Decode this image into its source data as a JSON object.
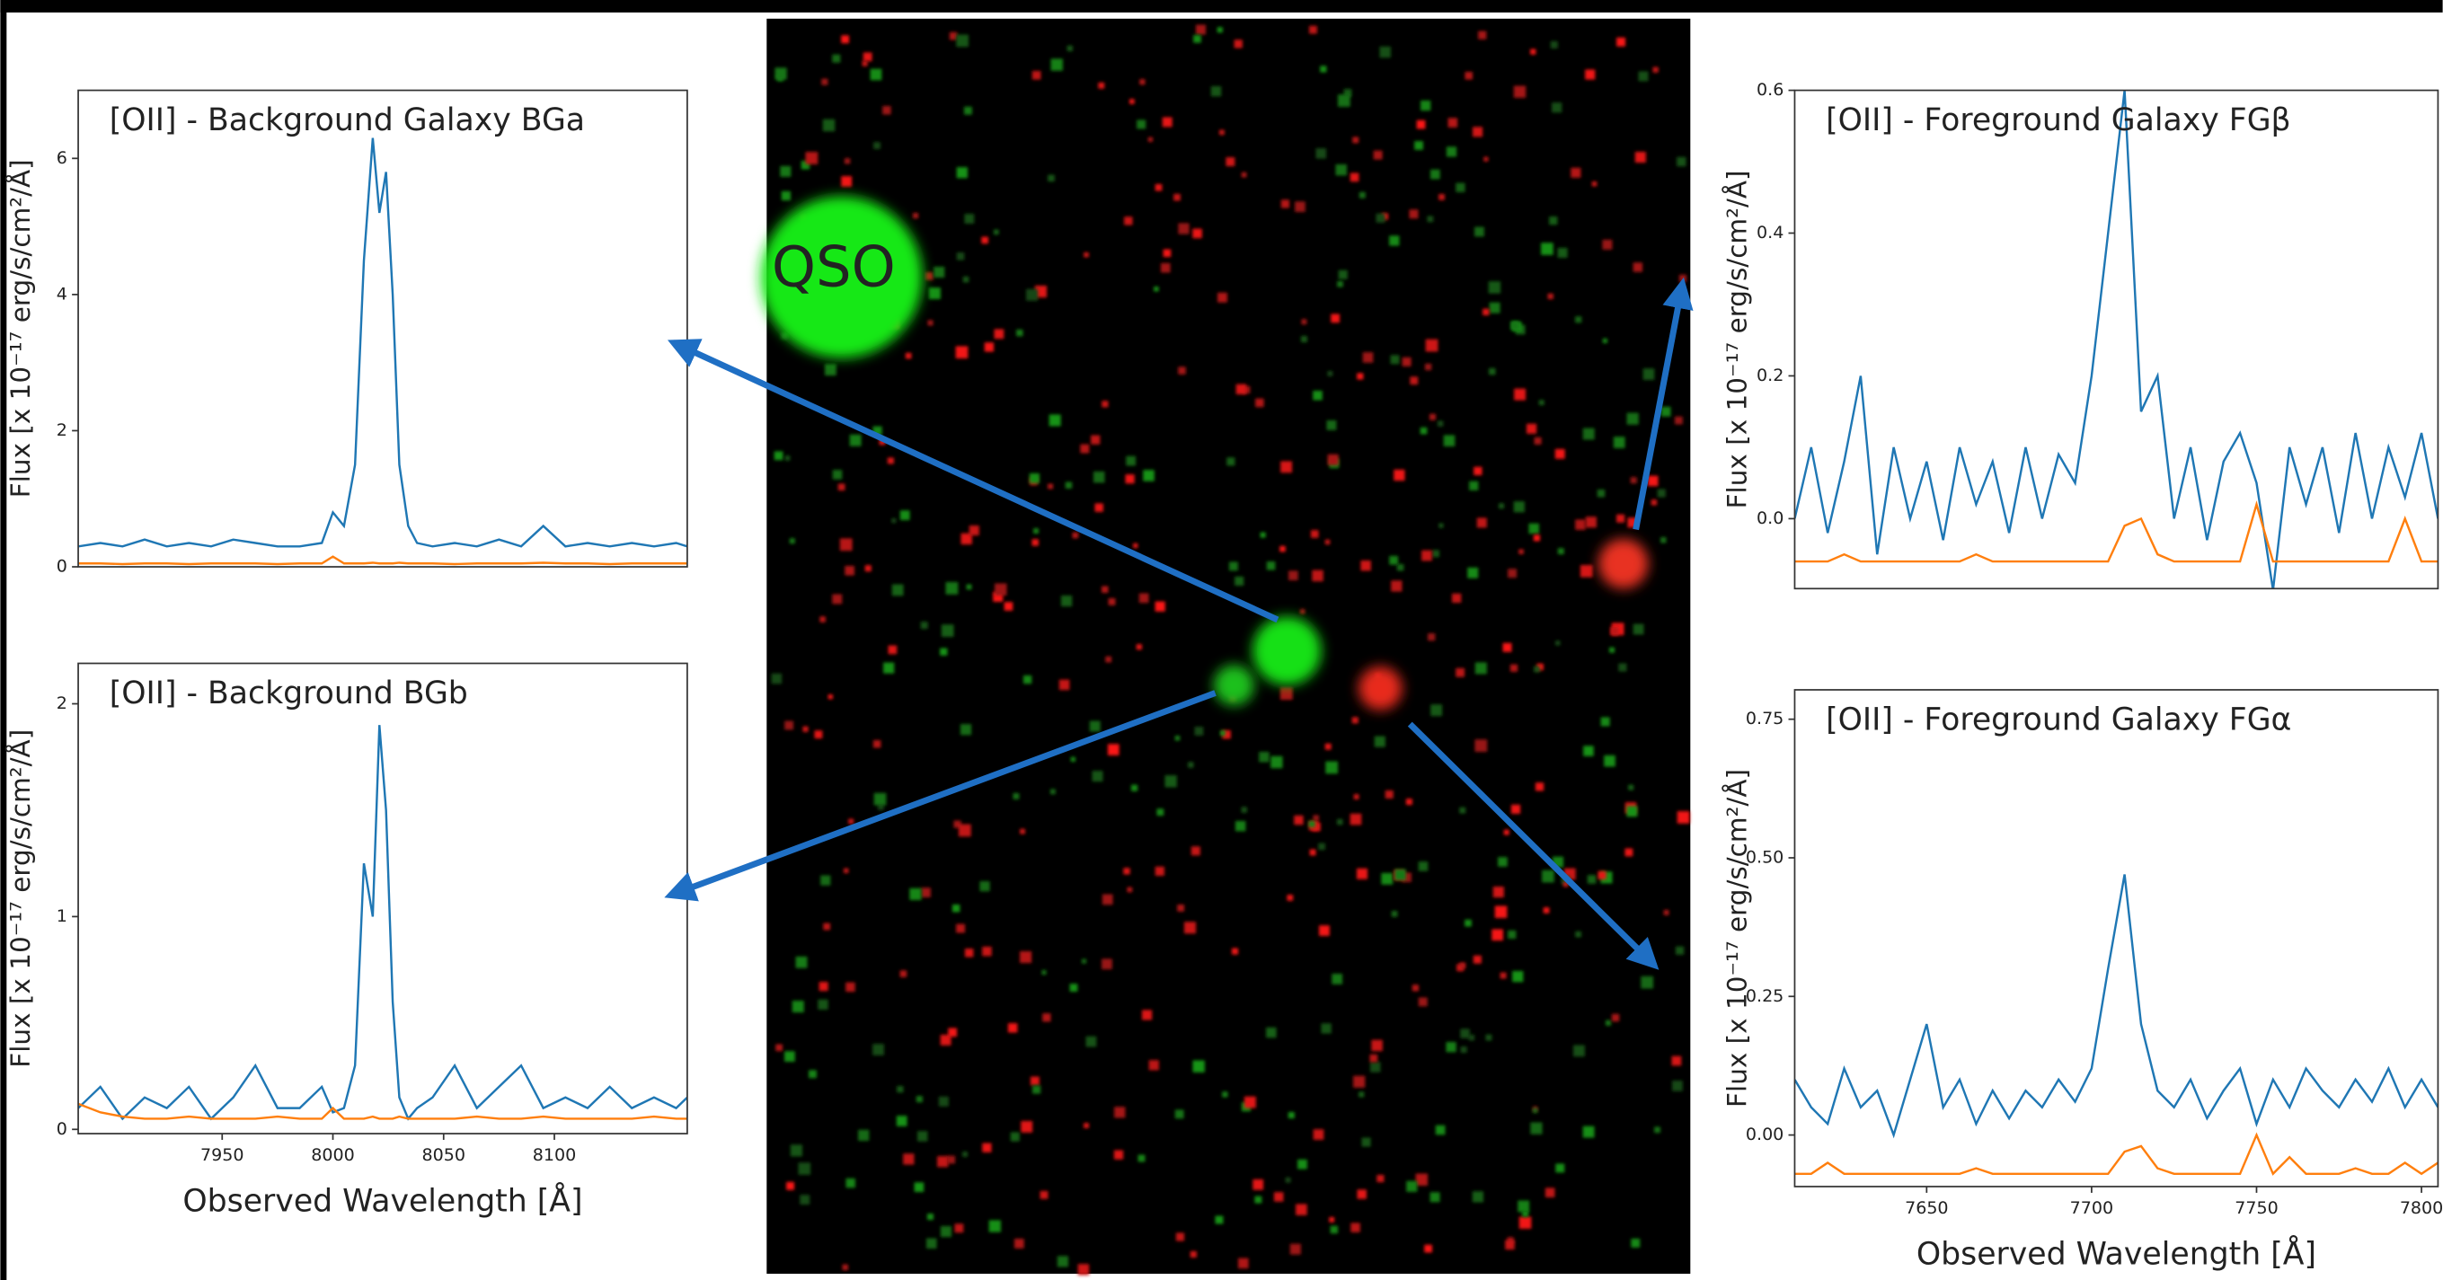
{
  "chart_data": [
    {
      "type": "line",
      "title": "[OII] - Background Galaxy BGa",
      "ylabel": "Flux [x 10⁻¹⁷ erg/s/cm²/Å]",
      "xlim": [
        7885,
        8160
      ],
      "ylim": [
        0,
        7.0
      ],
      "yticks": [
        0,
        2,
        4,
        6
      ],
      "x": [
        7885,
        7895,
        7905,
        7915,
        7925,
        7935,
        7945,
        7955,
        7965,
        7975,
        7985,
        7995,
        8000,
        8005,
        8010,
        8014,
        8018,
        8021,
        8024,
        8027,
        8030,
        8034,
        8038,
        8045,
        8055,
        8065,
        8075,
        8085,
        8095,
        8105,
        8115,
        8125,
        8135,
        8145,
        8155,
        8160
      ],
      "series": [
        {
          "color": "#1f77b4",
          "values": [
            0.3,
            0.35,
            0.3,
            0.4,
            0.3,
            0.35,
            0.3,
            0.4,
            0.35,
            0.3,
            0.3,
            0.35,
            0.8,
            0.6,
            1.5,
            4.5,
            6.3,
            5.2,
            5.8,
            4.0,
            1.5,
            0.6,
            0.35,
            0.3,
            0.35,
            0.3,
            0.4,
            0.3,
            0.6,
            0.3,
            0.35,
            0.3,
            0.35,
            0.3,
            0.35,
            0.3
          ]
        },
        {
          "color": "#ff7f0e",
          "values": [
            0.05,
            0.05,
            0.04,
            0.05,
            0.05,
            0.04,
            0.05,
            0.05,
            0.05,
            0.04,
            0.05,
            0.05,
            0.15,
            0.05,
            0.05,
            0.05,
            0.06,
            0.05,
            0.05,
            0.05,
            0.06,
            0.05,
            0.05,
            0.05,
            0.04,
            0.05,
            0.05,
            0.05,
            0.06,
            0.05,
            0.05,
            0.04,
            0.05,
            0.05,
            0.05,
            0.05
          ]
        }
      ]
    },
    {
      "type": "line",
      "title": "[OII] - Background BGb",
      "xlabel": "Observed Wavelength [Å]",
      "ylabel": "Flux [x 10⁻¹⁷ erg/s/cm²/Å]",
      "xlim": [
        7885,
        8160
      ],
      "xticks": [
        7950,
        8000,
        8050,
        8100
      ],
      "ylim": [
        -0.02,
        2.19
      ],
      "yticks": [
        0,
        1,
        2
      ],
      "x": [
        7885,
        7895,
        7905,
        7915,
        7925,
        7935,
        7945,
        7955,
        7965,
        7975,
        7985,
        7995,
        8000,
        8005,
        8010,
        8014,
        8018,
        8021,
        8024,
        8027,
        8030,
        8034,
        8038,
        8045,
        8055,
        8065,
        8075,
        8085,
        8095,
        8105,
        8115,
        8125,
        8135,
        8145,
        8155,
        8160
      ],
      "series": [
        {
          "color": "#1f77b4",
          "values": [
            0.1,
            0.2,
            0.05,
            0.15,
            0.1,
            0.2,
            0.05,
            0.15,
            0.3,
            0.1,
            0.1,
            0.2,
            0.08,
            0.1,
            0.3,
            1.25,
            1.0,
            1.9,
            1.5,
            0.6,
            0.15,
            0.05,
            0.1,
            0.15,
            0.3,
            0.1,
            0.2,
            0.3,
            0.1,
            0.15,
            0.1,
            0.2,
            0.1,
            0.15,
            0.1,
            0.15
          ]
        },
        {
          "color": "#ff7f0e",
          "values": [
            0.12,
            0.08,
            0.06,
            0.05,
            0.05,
            0.06,
            0.05,
            0.05,
            0.05,
            0.06,
            0.05,
            0.05,
            0.1,
            0.05,
            0.05,
            0.05,
            0.06,
            0.05,
            0.05,
            0.05,
            0.06,
            0.05,
            0.05,
            0.05,
            0.05,
            0.06,
            0.05,
            0.05,
            0.06,
            0.05,
            0.05,
            0.05,
            0.05,
            0.06,
            0.05,
            0.05
          ]
        }
      ]
    },
    {
      "type": "line",
      "title": "[OII] - Foreground Galaxy FGβ",
      "ylabel": "Flux [x 10⁻¹⁷ erg/s/cm²/Å]",
      "xlim": [
        7610,
        7805
      ],
      "ylim": [
        -0.098,
        0.6
      ],
      "yticks": [
        {
          "value": 0,
          "label": "0.0"
        },
        {
          "value": 0.2,
          "label": "0.2"
        },
        0.4,
        0.6
      ],
      "x": [
        7610,
        7615,
        7620,
        7625,
        7630,
        7635,
        7640,
        7645,
        7650,
        7655,
        7660,
        7665,
        7670,
        7675,
        7680,
        7685,
        7690,
        7695,
        7700,
        7705,
        7710,
        7715,
        7720,
        7725,
        7730,
        7735,
        7740,
        7745,
        7750,
        7755,
        7760,
        7765,
        7770,
        7775,
        7780,
        7785,
        7790,
        7795,
        7800,
        7805
      ],
      "series": [
        {
          "color": "#1f77b4",
          "values": [
            0.0,
            0.1,
            -0.02,
            0.08,
            0.2,
            -0.05,
            0.1,
            0.0,
            0.08,
            -0.03,
            0.1,
            0.02,
            0.08,
            -0.02,
            0.1,
            0.0,
            0.09,
            0.05,
            0.2,
            0.4,
            0.6,
            0.15,
            0.2,
            0.0,
            0.1,
            -0.03,
            0.08,
            0.12,
            0.05,
            -0.1,
            0.1,
            0.02,
            0.1,
            -0.02,
            0.12,
            0.0,
            0.1,
            0.03,
            0.12,
            0.0
          ]
        },
        {
          "color": "#ff7f0e",
          "values": [
            -0.06,
            -0.06,
            -0.06,
            -0.05,
            -0.06,
            -0.06,
            -0.06,
            -0.06,
            -0.06,
            -0.06,
            -0.06,
            -0.05,
            -0.06,
            -0.06,
            -0.06,
            -0.06,
            -0.06,
            -0.06,
            -0.06,
            -0.06,
            -0.01,
            0.0,
            -0.05,
            -0.06,
            -0.06,
            -0.06,
            -0.06,
            -0.06,
            0.02,
            -0.06,
            -0.06,
            -0.06,
            -0.06,
            -0.06,
            -0.06,
            -0.06,
            -0.06,
            0.0,
            -0.06,
            -0.06
          ]
        }
      ]
    },
    {
      "type": "line",
      "title": "[OII] - Foreground Galaxy FGα",
      "xlabel": "Observed Wavelength [Å]",
      "ylabel": "Flux [x 10⁻¹⁷ erg/s/cm²/Å]",
      "xlim": [
        7610,
        7805
      ],
      "xticks": [
        7650,
        7700,
        7750,
        7800
      ],
      "ylim": [
        -0.093,
        0.803
      ],
      "yticks": [
        {
          "value": 0,
          "label": "0.00"
        },
        {
          "value": 0.25,
          "label": "0.25"
        },
        {
          "value": 0.5,
          "label": "0.50"
        },
        0.75
      ],
      "x": [
        7610,
        7615,
        7620,
        7625,
        7630,
        7635,
        7640,
        7645,
        7650,
        7655,
        7660,
        7665,
        7670,
        7675,
        7680,
        7685,
        7690,
        7695,
        7700,
        7705,
        7710,
        7715,
        7720,
        7725,
        7730,
        7735,
        7740,
        7745,
        7750,
        7755,
        7760,
        7765,
        7770,
        7775,
        7780,
        7785,
        7790,
        7795,
        7800,
        7805
      ],
      "series": [
        {
          "color": "#1f77b4",
          "values": [
            0.1,
            0.05,
            0.02,
            0.12,
            0.05,
            0.08,
            0.0,
            0.1,
            0.2,
            0.05,
            0.1,
            0.02,
            0.08,
            0.03,
            0.08,
            0.05,
            0.1,
            0.06,
            0.12,
            0.3,
            0.47,
            0.2,
            0.08,
            0.05,
            0.1,
            0.03,
            0.08,
            0.12,
            0.02,
            0.1,
            0.05,
            0.12,
            0.08,
            0.05,
            0.1,
            0.06,
            0.12,
            0.05,
            0.1,
            0.05
          ]
        },
        {
          "color": "#ff7f0e",
          "values": [
            -0.07,
            -0.07,
            -0.05,
            -0.07,
            -0.07,
            -0.07,
            -0.07,
            -0.07,
            -0.07,
            -0.07,
            -0.07,
            -0.06,
            -0.07,
            -0.07,
            -0.07,
            -0.07,
            -0.07,
            -0.07,
            -0.07,
            -0.07,
            -0.03,
            -0.02,
            -0.06,
            -0.07,
            -0.07,
            -0.07,
            -0.07,
            -0.07,
            -0.0,
            -0.07,
            -0.04,
            -0.07,
            -0.07,
            -0.07,
            -0.06,
            -0.07,
            -0.07,
            -0.05,
            -0.07,
            -0.05
          ]
        }
      ]
    }
  ],
  "image_label": "QSO"
}
